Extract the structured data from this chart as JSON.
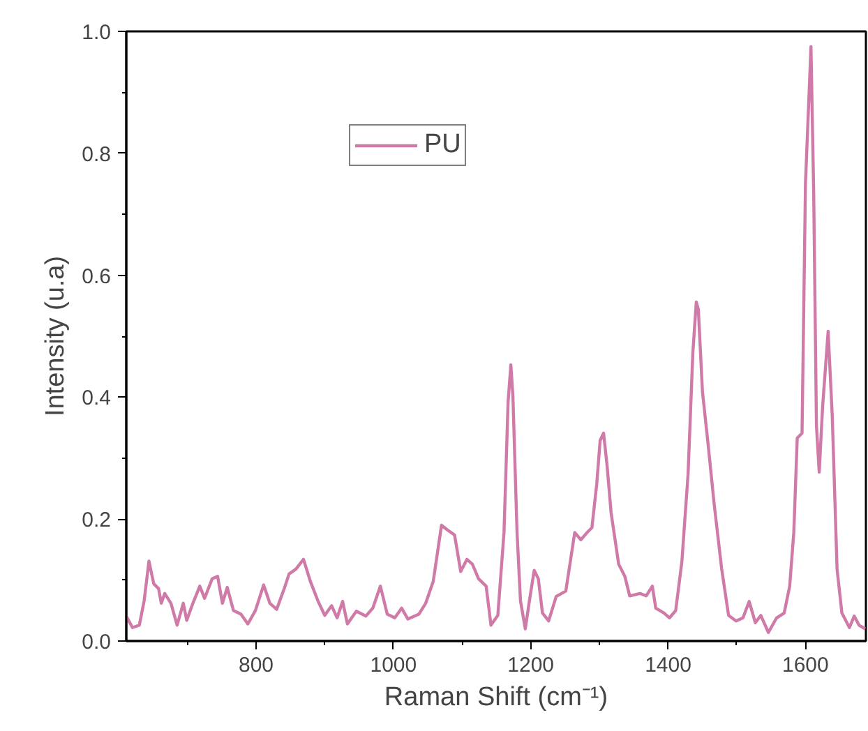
{
  "chart_data": {
    "type": "line",
    "xlabel": "Raman Shift (cm⁻¹)",
    "ylabel": "Intensity (u.a)",
    "x": [
      611,
      620,
      630,
      637,
      644,
      651,
      658,
      662,
      667,
      676,
      685,
      694,
      699,
      708,
      718,
      725,
      736,
      744,
      751,
      758,
      767,
      778,
      788,
      799,
      811,
      820,
      830,
      841,
      848,
      858,
      869,
      879,
      890,
      900,
      910,
      918,
      926,
      933,
      946,
      960,
      970,
      981,
      991,
      1002,
      1012,
      1021,
      1037,
      1047,
      1058,
      1070,
      1079,
      1089,
      1098,
      1107,
      1115,
      1124,
      1135,
      1142,
      1152,
      1161,
      1167,
      1171,
      1174,
      1180,
      1185,
      1192,
      1198,
      1205,
      1211,
      1217,
      1226,
      1237,
      1251,
      1257,
      1264,
      1273,
      1282,
      1289,
      1296,
      1301,
      1306,
      1311,
      1317,
      1328,
      1337,
      1344,
      1359,
      1368,
      1377,
      1382,
      1394,
      1402,
      1411,
      1420,
      1429,
      1436,
      1441,
      1444,
      1450,
      1458,
      1467,
      1478,
      1488,
      1499,
      1509,
      1518,
      1527,
      1535,
      1546,
      1558,
      1569,
      1577,
      1583,
      1588,
      1595,
      1600,
      1608,
      1612,
      1616,
      1620,
      1625,
      1633,
      1639,
      1646,
      1653,
      1664,
      1671,
      1678,
      1687
    ],
    "series": [
      {
        "name": "PU",
        "color": "#d07aa8",
        "values": [
          0.041,
          0.022,
          0.026,
          0.066,
          0.131,
          0.094,
          0.086,
          0.062,
          0.078,
          0.062,
          0.026,
          0.062,
          0.034,
          0.062,
          0.09,
          0.07,
          0.102,
          0.106,
          0.062,
          0.088,
          0.05,
          0.044,
          0.028,
          0.05,
          0.092,
          0.062,
          0.052,
          0.086,
          0.11,
          0.118,
          0.134,
          0.098,
          0.066,
          0.042,
          0.058,
          0.038,
          0.065,
          0.028,
          0.049,
          0.041,
          0.054,
          0.09,
          0.044,
          0.038,
          0.054,
          0.036,
          0.044,
          0.062,
          0.098,
          0.19,
          0.182,
          0.174,
          0.114,
          0.134,
          0.126,
          0.102,
          0.09,
          0.026,
          0.042,
          0.178,
          0.393,
          0.453,
          0.401,
          0.178,
          0.066,
          0.02,
          0.066,
          0.116,
          0.102,
          0.046,
          0.033,
          0.073,
          0.082,
          0.126,
          0.178,
          0.166,
          0.178,
          0.186,
          0.257,
          0.329,
          0.341,
          0.289,
          0.21,
          0.126,
          0.106,
          0.074,
          0.078,
          0.074,
          0.09,
          0.054,
          0.046,
          0.038,
          0.05,
          0.13,
          0.273,
          0.473,
          0.556,
          0.544,
          0.409,
          0.325,
          0.225,
          0.118,
          0.042,
          0.033,
          0.038,
          0.065,
          0.03,
          0.042,
          0.014,
          0.038,
          0.046,
          0.09,
          0.178,
          0.333,
          0.341,
          0.751,
          0.975,
          0.733,
          0.353,
          0.277,
          0.385,
          0.508,
          0.369,
          0.118,
          0.046,
          0.022,
          0.041,
          0.026,
          0.02
        ]
      }
    ],
    "xlim": [
      611,
      1688
    ],
    "ylim": [
      0,
      1.0
    ],
    "xticks": [
      {
        "value": 700,
        "label": null
      },
      800,
      {
        "value": 900,
        "label": null
      },
      1000,
      {
        "value": 1100,
        "label": null
      },
      1200,
      {
        "value": 1300,
        "label": null
      },
      1400,
      {
        "value": 1500,
        "label": null
      },
      1600
    ],
    "yticks": [
      {
        "value": 0,
        "label": "0.0"
      },
      {
        "value": 0.1,
        "label": null
      },
      0.2,
      {
        "value": 0.3,
        "label": null
      },
      0.4,
      {
        "value": 0.5,
        "label": null
      },
      0.6,
      {
        "value": 0.7,
        "label": null
      },
      0.8,
      {
        "value": 0.9,
        "label": null
      },
      {
        "value": 1.0,
        "label": "1.0"
      }
    ],
    "grid": false,
    "legend": "top",
    "marker": "none",
    "line_style": "solid"
  }
}
